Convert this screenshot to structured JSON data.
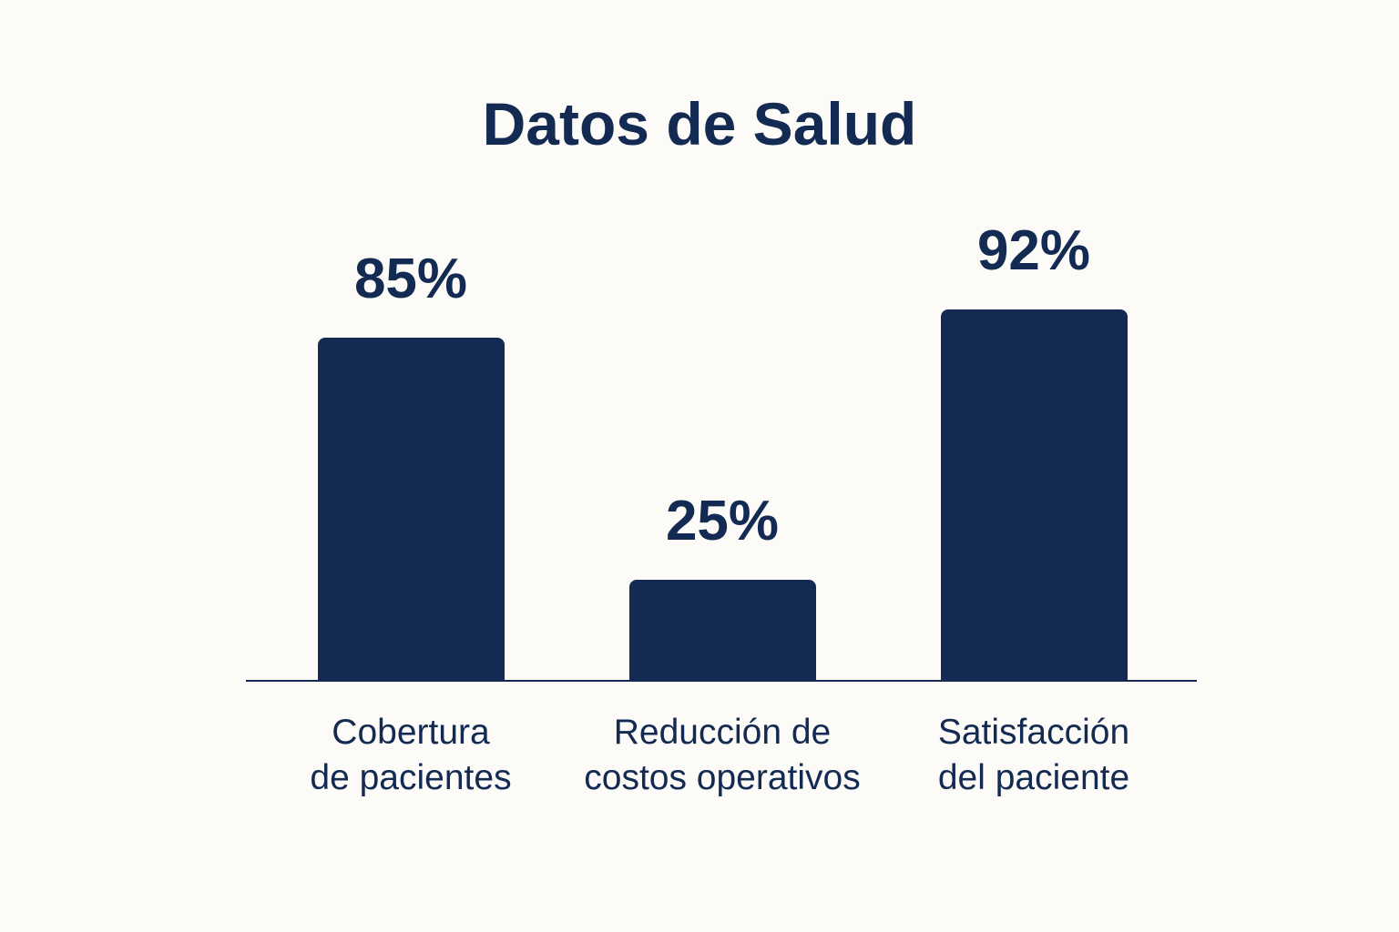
{
  "chart_data": {
    "type": "bar",
    "title": "Datos de Salud",
    "categories": [
      "Cobertura\nde pacientes",
      "Reducción de\ncostos operativos",
      "Satisfacción\ndel paciente"
    ],
    "values": [
      85,
      25,
      92
    ],
    "value_labels": [
      "85%",
      "25%",
      "92%"
    ],
    "color": "#132a52"
  }
}
